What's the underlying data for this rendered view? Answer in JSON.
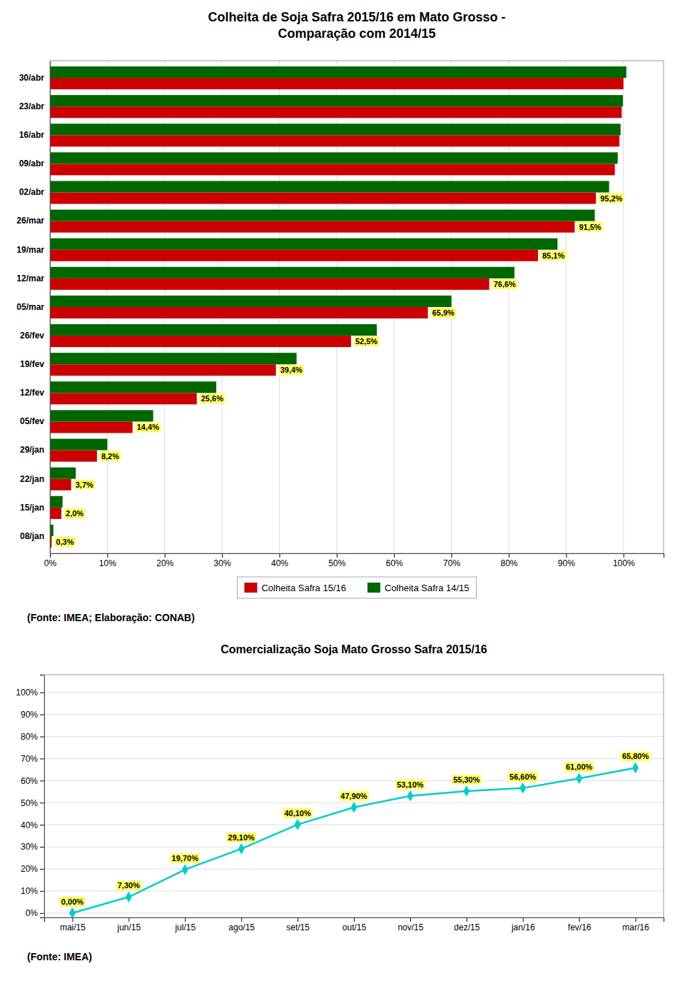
{
  "chart_data": [
    {
      "type": "bar",
      "orientation": "horizontal",
      "title": "Colheita de Soja Safra 2015/16 em Mato Grosso -\nComparação com 2014/15",
      "categories": [
        "08/jan",
        "15/jan",
        "22/jan",
        "29/jan",
        "05/fev",
        "12/fev",
        "19/fev",
        "26/fev",
        "05/mar",
        "12/mar",
        "19/mar",
        "26/mar",
        "02/abr",
        "09/abr",
        "16/abr",
        "23/abr",
        "30/abr"
      ],
      "series": [
        {
          "name": "Colheita Safra 15/16",
          "color": "#cc0000",
          "values": [
            0.3,
            2.0,
            3.7,
            8.2,
            14.4,
            25.6,
            39.4,
            52.5,
            65.9,
            76.6,
            85.1,
            91.5,
            95.2,
            98.5,
            99.3,
            99.7,
            100.0
          ],
          "value_labels": [
            "0,3%",
            "2,0%",
            "3,7%",
            "8,2%",
            "14,4%",
            "25,6%",
            "39,4%",
            "52,5%",
            "65,9%",
            "76,6%",
            "85,1%",
            "91,5%",
            "95,2%",
            null,
            null,
            null,
            null
          ]
        },
        {
          "name": "Colheita Safra 14/15",
          "color": "#006600",
          "values": [
            0.6,
            2.2,
            4.5,
            10.0,
            18.0,
            29.0,
            43.0,
            57.0,
            70.0,
            81.0,
            88.5,
            95.0,
            97.5,
            99.0,
            99.5,
            99.9,
            100.5
          ]
        }
      ],
      "xlim": [
        0,
        107
      ],
      "xticks": [
        {
          "value": 0,
          "label": "0%"
        },
        {
          "value": 10,
          "label": "10%"
        },
        {
          "value": 20,
          "label": "20%"
        },
        {
          "value": 30,
          "label": "30%"
        },
        {
          "value": 40,
          "label": "40%"
        },
        {
          "value": 50,
          "label": "50%"
        },
        {
          "value": 60,
          "label": "60%"
        },
        {
          "value": 70,
          "label": "70%"
        },
        {
          "value": 80,
          "label": "80%"
        },
        {
          "value": 90,
          "label": "90%"
        },
        {
          "value": 100,
          "label": "100%"
        }
      ],
      "grid": true,
      "legend": "bottom",
      "data_labels": true,
      "source": "(Fonte: IMEA; Elaboração: CONAB)"
    },
    {
      "type": "line",
      "title": "Comercialização Soja Mato Grosso Safra 2015/16",
      "categories": [
        "mai/15",
        "jun/15",
        "jul/15",
        "ago/15",
        "set/15",
        "out/15",
        "nov/15",
        "dez/15",
        "jan/16",
        "fev/16",
        "mar/16"
      ],
      "values": [
        0.0,
        7.3,
        19.7,
        29.1,
        40.1,
        47.9,
        53.1,
        55.3,
        56.6,
        61.0,
        65.8
      ],
      "value_labels": [
        "0,00%",
        "7,30%",
        "19,70%",
        "29,10%",
        "40,10%",
        "47,90%",
        "53,10%",
        "55,30%",
        "56,60%",
        "61,00%",
        "65,80%"
      ],
      "color": "#00cccc",
      "marker": "diamond",
      "ylim": [
        -2,
        108
      ],
      "yticks": [
        {
          "value": 0,
          "label": "0%"
        },
        {
          "value": 10,
          "label": "10%"
        },
        {
          "value": 20,
          "label": "20%"
        },
        {
          "value": 30,
          "label": "30%"
        },
        {
          "value": 40,
          "label": "40%"
        },
        {
          "value": 50,
          "label": "50%"
        },
        {
          "value": 60,
          "label": "60%"
        },
        {
          "value": 70,
          "label": "70%"
        },
        {
          "value": 80,
          "label": "80%"
        },
        {
          "value": 90,
          "label": "90%"
        },
        {
          "value": 100,
          "label": "100%"
        }
      ],
      "grid": true,
      "data_labels": true,
      "source": "(Fonte: IMEA)"
    }
  ]
}
